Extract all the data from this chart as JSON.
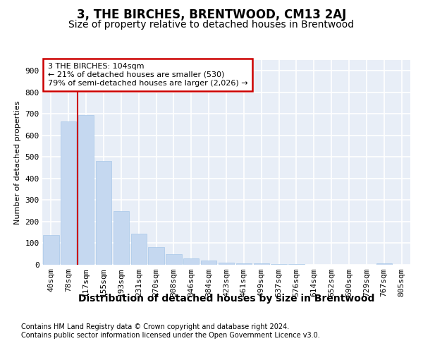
{
  "title": "3, THE BIRCHES, BRENTWOOD, CM13 2AJ",
  "subtitle": "Size of property relative to detached houses in Brentwood",
  "xlabel": "Distribution of detached houses by size in Brentwood",
  "ylabel": "Number of detached properties",
  "footnote1": "Contains HM Land Registry data © Crown copyright and database right 2024.",
  "footnote2": "Contains public sector information licensed under the Open Government Licence v3.0.",
  "bin_labels": [
    "40sqm",
    "78sqm",
    "117sqm",
    "155sqm",
    "193sqm",
    "231sqm",
    "270sqm",
    "308sqm",
    "346sqm",
    "384sqm",
    "423sqm",
    "461sqm",
    "499sqm",
    "537sqm",
    "576sqm",
    "614sqm",
    "652sqm",
    "690sqm",
    "729sqm",
    "767sqm",
    "805sqm"
  ],
  "bar_heights": [
    138,
    665,
    693,
    480,
    248,
    145,
    83,
    50,
    28,
    20,
    10,
    8,
    5,
    3,
    2,
    1,
    0,
    0,
    0,
    8,
    0
  ],
  "bar_color": "#c5d8f0",
  "bar_edgecolor": "#a8c8e8",
  "red_line_x": 1.5,
  "annotation_text": "3 THE BIRCHES: 104sqm\n← 21% of detached houses are smaller (530)\n79% of semi-detached houses are larger (2,026) →",
  "ylim": [
    0,
    950
  ],
  "yticks": [
    0,
    100,
    200,
    300,
    400,
    500,
    600,
    700,
    800,
    900
  ],
  "red_line_color": "#cc0000",
  "box_facecolor": "#ffffff",
  "box_edgecolor": "#cc0000",
  "fig_facecolor": "#ffffff",
  "plot_facecolor": "#e8eef7",
  "grid_color": "#ffffff",
  "title_fontsize": 12,
  "subtitle_fontsize": 10,
  "xlabel_fontsize": 10,
  "ylabel_fontsize": 8,
  "tick_fontsize": 8,
  "footnote_fontsize": 7
}
